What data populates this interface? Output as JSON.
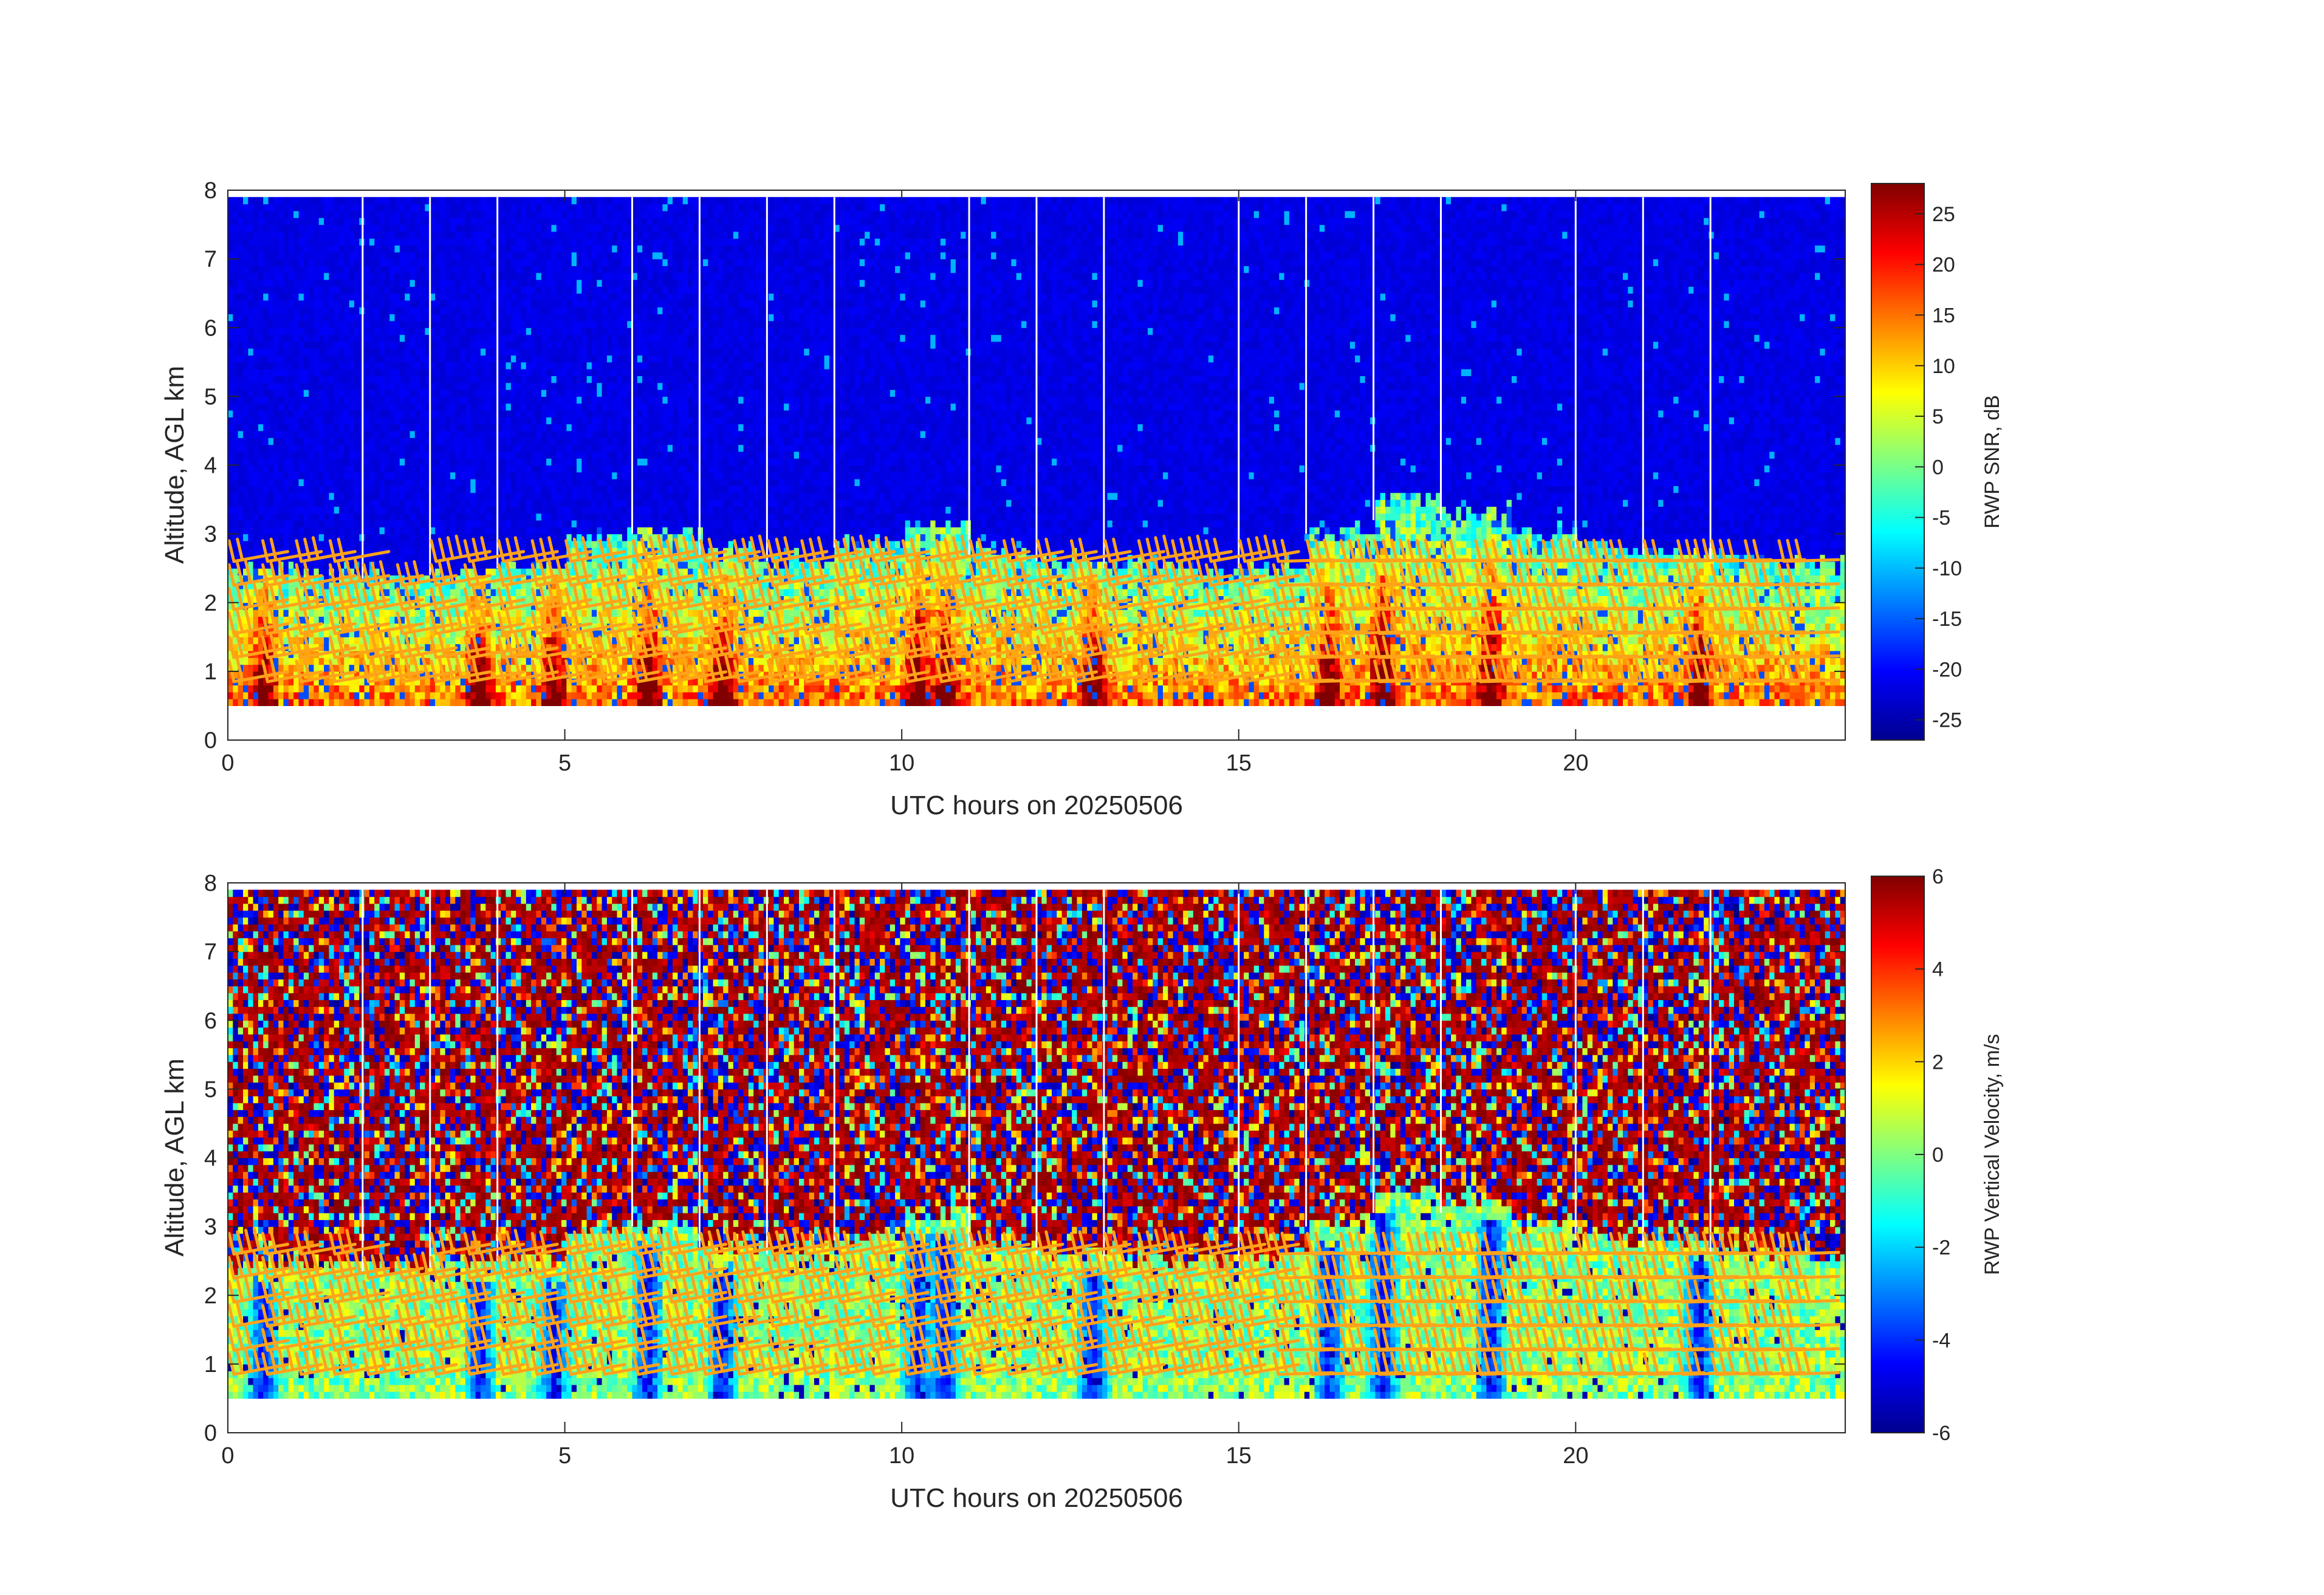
{
  "figure": {
    "background": "#ffffff",
    "barb_color": "#ffa31a",
    "gap_color": "#ffffff",
    "colormap": "jet"
  },
  "chart_data": [
    {
      "type": "heatmap",
      "name": "snr",
      "xlabel": "UTC hours on 20250506",
      "ylabel": "Altitude, AGL km",
      "colorbar_label": "RWP SNR, dB",
      "xlim": [
        0,
        24
      ],
      "ylim": [
        0,
        8
      ],
      "data_altitude_range": [
        0.5,
        7.9
      ],
      "low_layer_top_km": [
        2.4,
        2.4,
        2.35,
        2.4,
        2.5,
        2.9,
        3.0,
        2.7,
        2.6,
        2.8,
        3.1,
        2.7,
        2.6,
        2.5,
        2.4,
        2.5,
        3.0,
        3.5,
        3.3,
        3.0,
        2.8,
        2.7,
        2.6,
        2.5
      ],
      "x_ticks": [
        0,
        5,
        10,
        15,
        20
      ],
      "y_ticks": [
        0,
        1,
        2,
        3,
        4,
        5,
        6,
        7,
        8
      ],
      "colorbar_range": [
        -27,
        28
      ],
      "colorbar_ticks": [
        -25,
        -20,
        -15,
        -10,
        -5,
        0,
        5,
        10,
        15,
        20,
        25
      ],
      "gap_hours": [
        2,
        3,
        4,
        6,
        7,
        8,
        9,
        11,
        12,
        13,
        15,
        16,
        17,
        18,
        20,
        21,
        22
      ],
      "barbs_overlay": true
    },
    {
      "type": "heatmap",
      "name": "vertical-velocity",
      "xlabel": "UTC hours on 20250506",
      "ylabel": "Altitude, AGL km",
      "colorbar_label": "RWP Vertical Velocity, m/s",
      "xlim": [
        0,
        24
      ],
      "ylim": [
        0,
        8
      ],
      "data_altitude_range": [
        0.5,
        7.9
      ],
      "low_layer_top_km": [
        2.4,
        2.4,
        2.35,
        2.4,
        2.5,
        2.9,
        3.0,
        2.7,
        2.6,
        2.8,
        3.1,
        2.7,
        2.6,
        2.5,
        2.4,
        2.5,
        3.0,
        3.5,
        3.3,
        3.0,
        2.8,
        2.7,
        2.6,
        2.5
      ],
      "x_ticks": [
        0,
        5,
        10,
        15,
        20
      ],
      "y_ticks": [
        0,
        1,
        2,
        3,
        4,
        5,
        6,
        7,
        8
      ],
      "colorbar_range": [
        -6,
        6
      ],
      "colorbar_ticks": [
        -6,
        -4,
        -2,
        0,
        2,
        4,
        6
      ],
      "gap_hours": [
        2,
        3,
        4,
        6,
        7,
        8,
        9,
        11,
        12,
        13,
        15,
        16,
        17,
        18,
        20,
        21,
        22
      ],
      "barbs_overlay": true
    }
  ]
}
